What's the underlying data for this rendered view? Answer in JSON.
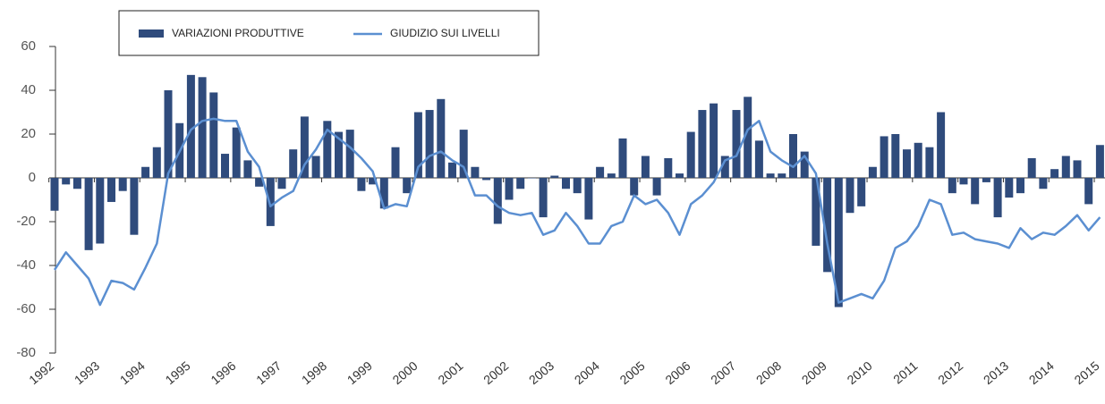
{
  "chart_data": {
    "type": "bar",
    "categories": [
      "1992",
      null,
      null,
      null,
      "1993",
      null,
      null,
      null,
      "1994",
      null,
      null,
      null,
      "1995",
      null,
      null,
      null,
      "1996",
      null,
      null,
      null,
      "1997",
      null,
      null,
      null,
      "1998",
      null,
      null,
      null,
      "1999",
      null,
      null,
      null,
      "2000",
      null,
      null,
      null,
      "2001",
      null,
      null,
      null,
      "2002",
      null,
      null,
      null,
      "2003",
      null,
      null,
      null,
      "2004",
      null,
      null,
      null,
      "2005",
      null,
      null,
      null,
      "2006",
      null,
      null,
      null,
      "2007",
      null,
      null,
      null,
      "2008",
      null,
      null,
      null,
      "2009",
      null,
      null,
      null,
      "2010",
      null,
      null,
      null,
      "2011",
      null,
      null,
      null,
      "2012",
      null,
      null,
      null,
      "2013",
      null,
      null,
      null,
      "2014",
      null,
      null,
      null,
      "2015"
    ],
    "series": [
      {
        "name": "VARIAZIONI PRODUTTIVE",
        "type": "bar",
        "color": "#2f4b7c",
        "values": [
          -15,
          -3,
          -5,
          -33,
          -30,
          -11,
          -6,
          -26,
          5,
          14,
          40,
          25,
          47,
          46,
          39,
          11,
          23,
          8,
          -4,
          -22,
          -5,
          13,
          28,
          10,
          26,
          21,
          22,
          -6,
          -3,
          -14,
          14,
          -7,
          30,
          31,
          36,
          7,
          22,
          5,
          -1,
          -21,
          -10,
          -5,
          0,
          -18,
          1,
          -5,
          -7,
          -19,
          5,
          2,
          18,
          -8,
          10,
          -8,
          9,
          2,
          21,
          31,
          34,
          10,
          31,
          37,
          17,
          2,
          2,
          20,
          12,
          -31,
          -43,
          -59,
          -16,
          -13,
          5,
          19,
          20,
          13,
          16,
          14,
          30,
          -7,
          -3,
          -12,
          -2,
          -18,
          -9,
          -7,
          9,
          -5,
          4,
          10,
          8,
          -12,
          15
        ]
      },
      {
        "name": "GIUDIZIO SUI LIVELLI",
        "type": "line",
        "color": "#5b8fd1",
        "values": [
          -42,
          -34,
          -40,
          -46,
          -58,
          -47,
          -48,
          -51,
          -41,
          -30,
          2,
          12,
          22,
          26,
          27,
          26,
          26,
          12,
          5,
          -13,
          -9,
          -6,
          6,
          13,
          22,
          18,
          14,
          9,
          3,
          -14,
          -12,
          -13,
          5,
          10,
          12,
          8,
          5,
          -8,
          -8,
          -13,
          -16,
          -17,
          -16,
          -26,
          -24,
          -16,
          -22,
          -30,
          -30,
          -22,
          -20,
          -8,
          -12,
          -10,
          -16,
          -26,
          -12,
          -8,
          -2,
          8,
          10,
          22,
          26,
          12,
          8,
          5,
          10,
          2,
          -30,
          -57,
          -55,
          -53,
          -55,
          -47,
          -32,
          -29,
          -22,
          -10,
          -12,
          -26,
          -25,
          -28,
          -29,
          -30,
          -32,
          -23,
          -28,
          -25,
          -26,
          -22,
          -17,
          -24,
          -18
        ]
      }
    ],
    "ylim": [
      -80,
      60
    ],
    "yticks": [
      -80,
      -60,
      -40,
      -20,
      0,
      20,
      40,
      60
    ]
  }
}
